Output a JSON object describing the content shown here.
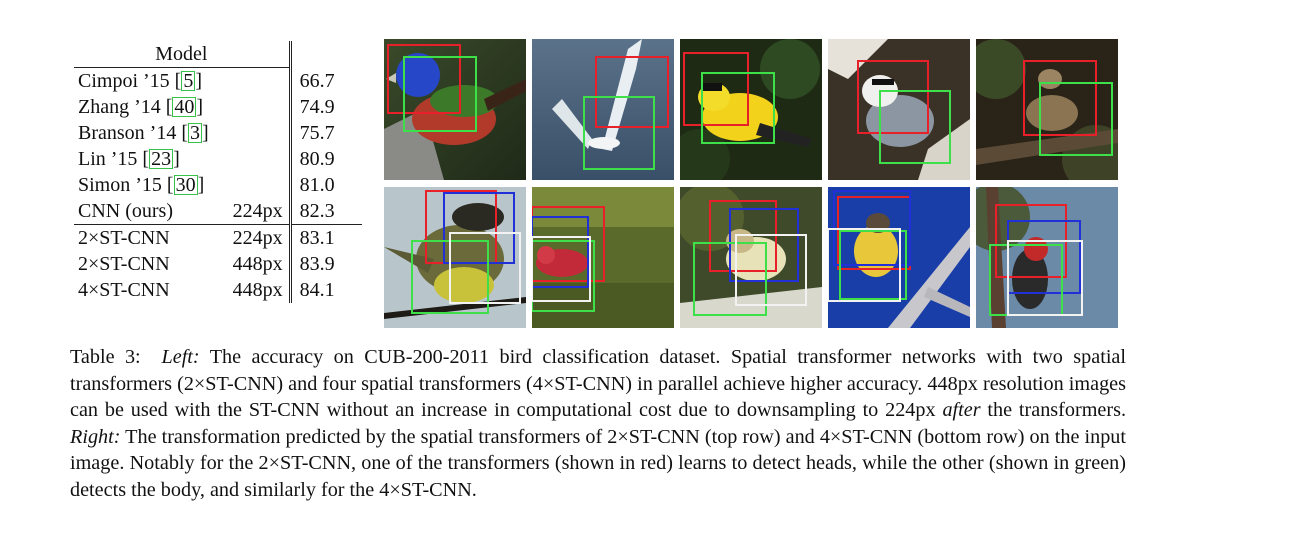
{
  "table": {
    "header": {
      "model": "Model"
    },
    "rows": [
      {
        "model": "Cimpoi ’15 [",
        "cite": "5",
        "close": "]",
        "res": "",
        "acc": "66.7"
      },
      {
        "model": "Zhang ’14 [",
        "cite": "40",
        "close": "]",
        "res": "",
        "acc": "74.9"
      },
      {
        "model": "Branson ’14 [",
        "cite": "3",
        "close": "]",
        "res": "",
        "acc": "75.7"
      },
      {
        "model": "Lin ’15 [",
        "cite": "23",
        "close": "]",
        "res": "",
        "acc": "80.9"
      },
      {
        "model": "Simon ’15 [",
        "cite": "30",
        "close": "]",
        "res": "",
        "acc": "81.0"
      },
      {
        "model": "CNN (ours)",
        "res": "224px",
        "acc": "82.3"
      },
      {
        "model": "2×ST-CNN",
        "res": "224px",
        "acc": "83.1"
      },
      {
        "model": "2×ST-CNN",
        "res": "448px",
        "acc": "83.9"
      },
      {
        "model": "4×ST-CNN",
        "res": "448px",
        "acc": "84.1"
      }
    ]
  },
  "caption": {
    "label": "Table 3:",
    "left_word": "Left:",
    "part1": " The accuracy on CUB-200-2011 bird classification dataset. Spatial transformer networks with two spatial transformers (2×ST-CNN) and four spatial transformers (4×ST-CNN) in parallel achieve higher accuracy. 448px resolution images can be used with the ST-CNN without an increase in computational cost due to downsampling to 224px ",
    "after_word": "after",
    "part2": " the transformers. ",
    "right_word": "Right:",
    "part3": " The transformation predicted by the spatial transformers of 2×ST-CNN (top row) and 4×ST-CNN (bottom row) on the input image. Notably for the 2×ST-CNN, one of the transformers (shown in red) learns to detect heads, while the other (shown in green) detects the body, and similarly for the 4×ST-CNN."
  },
  "box_colors": {
    "red": "#e8202a",
    "green": "#3ee04a",
    "blue": "#2230d8",
    "white": "#f2f2f2"
  }
}
